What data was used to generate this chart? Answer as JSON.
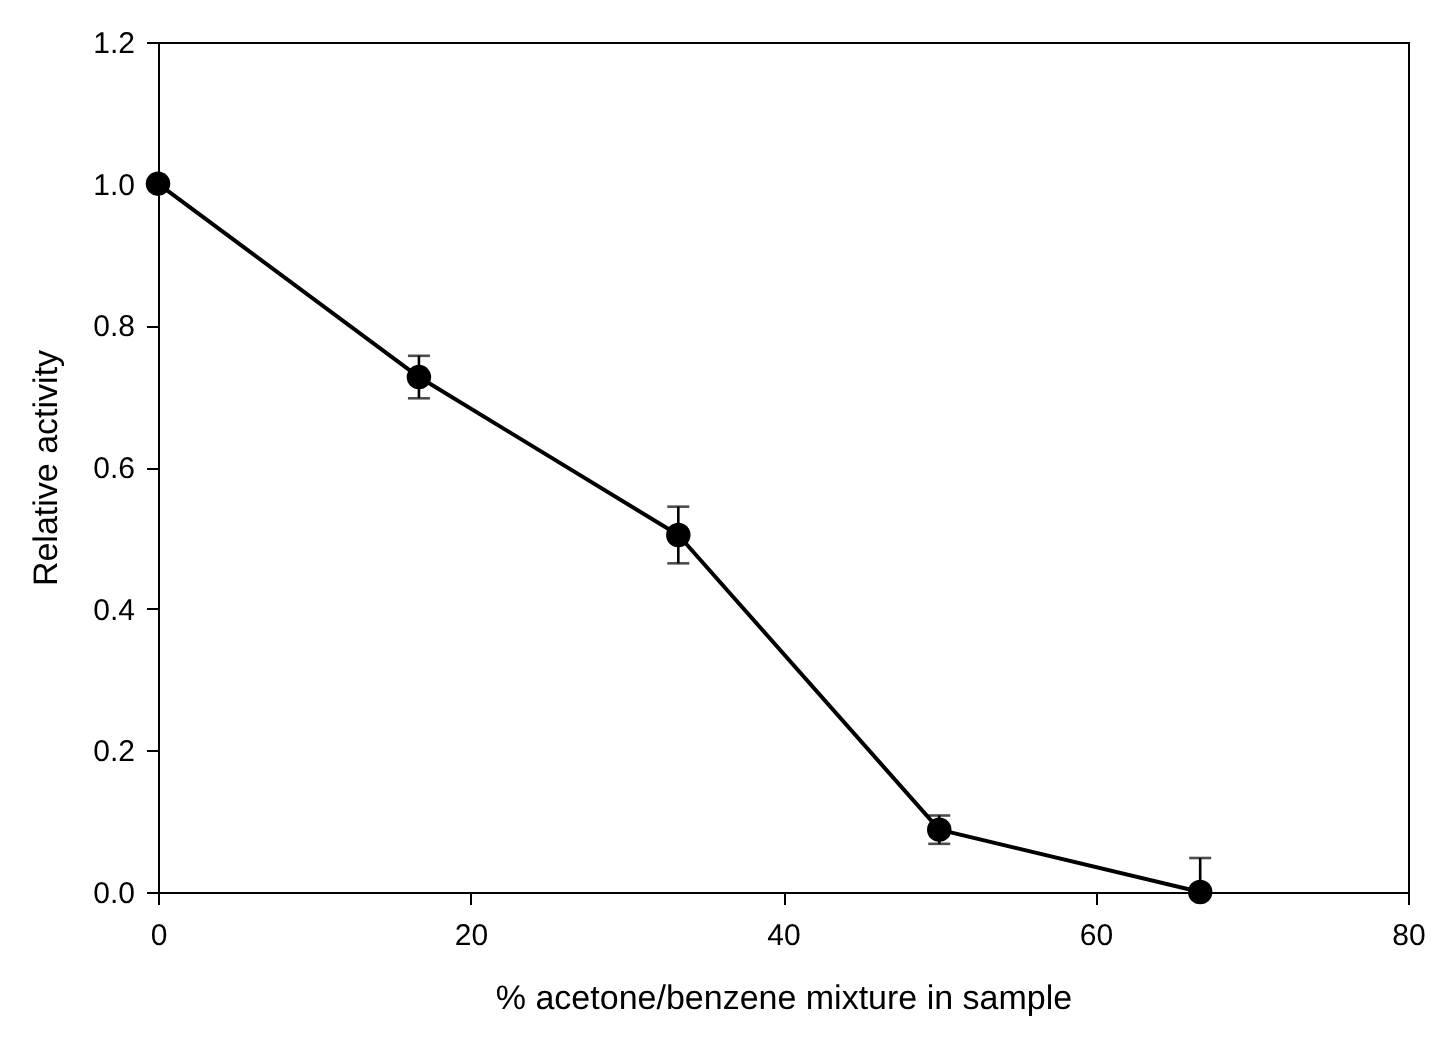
{
  "chart_data": {
    "type": "line",
    "xlabel": "% acetone/benzene mixture in sample",
    "ylabel": "Relative activity",
    "x": [
      0,
      16.7,
      33.3,
      50,
      66.7
    ],
    "series": [
      {
        "color": "#000000",
        "values": [
          1.0,
          0.727,
          0.504,
          0.088,
          0.0
        ],
        "errors": [
          null,
          0.03,
          0.04,
          0.02,
          [
            0,
            0.048
          ]
        ]
      }
    ],
    "xlim": [
      0,
      80
    ],
    "xticks": [
      0,
      20,
      40,
      60,
      80
    ],
    "ylim": [
      0,
      1.2
    ],
    "yticks": [
      {
        "value": 0,
        "label": "0.0"
      },
      {
        "value": 0.2,
        "label": "0.2"
      },
      {
        "value": 0.4,
        "label": "0.4"
      },
      {
        "value": 0.6,
        "label": "0.6"
      },
      {
        "value": 0.8,
        "label": "0.8"
      },
      {
        "value": 1.0,
        "label": "1.0"
      },
      {
        "value": 1.2,
        "label": "1.2"
      }
    ],
    "grid": false,
    "marker": "circle",
    "line_style": "solid"
  }
}
